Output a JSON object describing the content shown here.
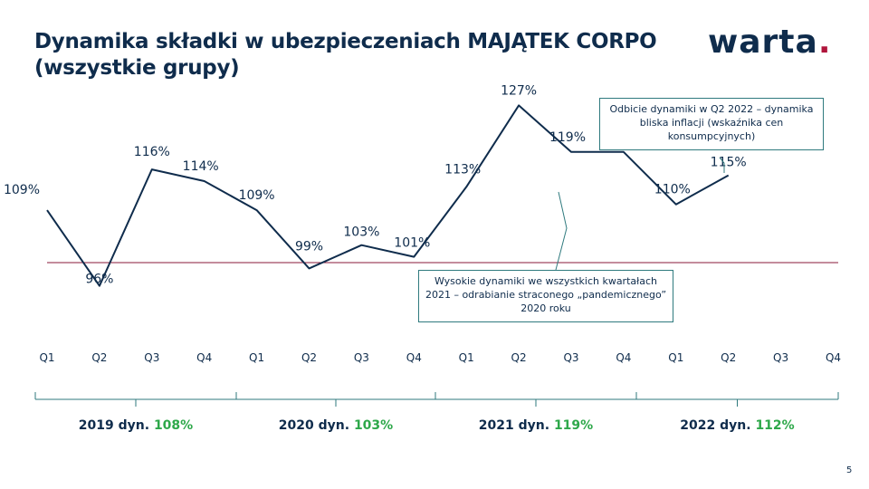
{
  "header": {
    "title_line1": "Dynamika składki w ubezpieczeniach MAJĄTEK CORPO",
    "title_line2": "(wszystkie grupy)",
    "logo_text": "warta",
    "logo_dot": "."
  },
  "colors": {
    "navy": "#0f2c4c",
    "accent_green": "#2ea84a",
    "baseline_red": "#8a1a3a",
    "callout_border": "#2f7a7e",
    "brand_dot": "#b0153c"
  },
  "chart_data": {
    "type": "line",
    "categories": [
      "Q1",
      "Q2",
      "Q3",
      "Q4",
      "Q1",
      "Q2",
      "Q3",
      "Q4",
      "Q1",
      "Q2",
      "Q3",
      "Q4",
      "Q1",
      "Q2",
      "Q3",
      "Q4"
    ],
    "values": [
      109,
      96,
      116,
      114,
      109,
      99,
      103,
      101,
      113,
      127,
      119,
      119,
      110,
      115,
      null,
      null
    ],
    "value_labels": [
      "109%",
      "96%",
      "116%",
      "114%",
      "109%",
      "99%",
      "103%",
      "101%",
      "113%",
      "127%",
      "119%",
      "119%",
      "110%",
      "115%",
      "",
      ""
    ],
    "reference_line": 100,
    "years": [
      {
        "label": "2019 dyn.",
        "value": "108%"
      },
      {
        "label": "2020 dyn.",
        "value": "103%"
      },
      {
        "label": "2021 dyn.",
        "value": "119%"
      },
      {
        "label": "2022 dyn.",
        "value": "112%"
      }
    ],
    "annotations": [
      {
        "text": "Odbicie dynamiki w Q2 2022 – dynamika bliska inflacji (wskaźnika cen konsumpcyjnych)"
      },
      {
        "text": "Wysokie dynamiki we wszystkich kwartałach 2021 – odrabianie straconego „pandemicznego” 2020 roku"
      }
    ]
  },
  "page_number": "5"
}
